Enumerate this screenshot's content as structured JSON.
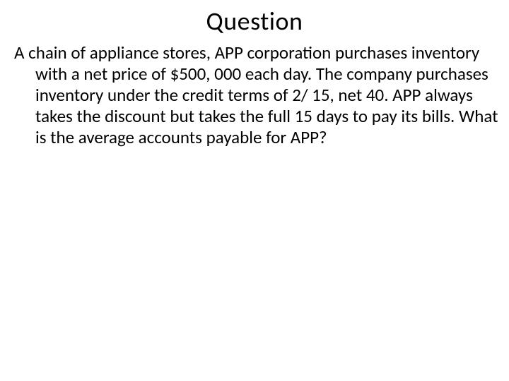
{
  "title": "Question",
  "body": "A chain of appliance stores, APP corporation purchases inventory with a net price of $500, 000 each day. The company purchases inventory under the credit terms of 2/ 15, net 40. APP always takes the discount but takes the full 15 days to pay its bills. What is the average accounts payable for APP?",
  "styling": {
    "background_color": "#ffffff",
    "text_color": "#000000",
    "title_fontsize": 36,
    "body_fontsize": 25,
    "font_family": "Calibri"
  }
}
